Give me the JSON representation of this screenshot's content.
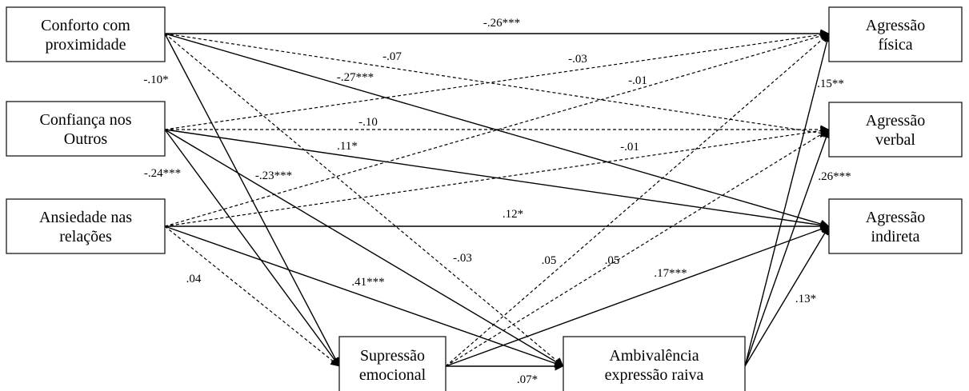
{
  "diagram": {
    "nodes": [
      {
        "id": "conforto",
        "lines": [
          "Conforto com",
          "proximidade"
        ]
      },
      {
        "id": "confianca",
        "lines": [
          "Confiança nos",
          "Outros"
        ]
      },
      {
        "id": "ansiedade",
        "lines": [
          "Ansiedade nas",
          "relações"
        ]
      },
      {
        "id": "supressao",
        "lines": [
          "Supressão",
          "emocional"
        ]
      },
      {
        "id": "ambivalencia",
        "lines": [
          "Ambivalência",
          "expressão raiva"
        ]
      },
      {
        "id": "fisica",
        "lines": [
          "Agressão",
          "física"
        ]
      },
      {
        "id": "verbal",
        "lines": [
          "Agressão",
          "verbal"
        ]
      },
      {
        "id": "indireta",
        "lines": [
          "Agressão",
          "indireta"
        ]
      }
    ],
    "edges": [
      {
        "from": "conforto",
        "to": "fisica",
        "label": "-.26***",
        "style": "solid"
      },
      {
        "from": "conforto",
        "to": "verbal",
        "label": "-.07",
        "style": "dashed"
      },
      {
        "from": "conforto",
        "to": "indireta",
        "label": "-.27***",
        "style": "solid"
      },
      {
        "from": "conforto",
        "to": "supressao",
        "label": "-.10*",
        "style": "solid"
      },
      {
        "from": "conforto",
        "to": "ambivalencia",
        "label": "-.03",
        "style": "dashed"
      },
      {
        "from": "confianca",
        "to": "fisica",
        "label": "-.03",
        "style": "dashed"
      },
      {
        "from": "confianca",
        "to": "verbal",
        "label": "-.10",
        "style": "dashed"
      },
      {
        "from": "confianca",
        "to": "indireta",
        "label": ".11*",
        "style": "solid"
      },
      {
        "from": "confianca",
        "to": "supressao",
        "label": "-.24***",
        "style": "solid"
      },
      {
        "from": "confianca",
        "to": "ambivalencia",
        "label": "-.23***",
        "style": "solid"
      },
      {
        "from": "ansiedade",
        "to": "fisica",
        "label": "-.01",
        "style": "dashed"
      },
      {
        "from": "ansiedade",
        "to": "verbal",
        "label": "-.01",
        "style": "dashed"
      },
      {
        "from": "ansiedade",
        "to": "indireta",
        "label": ".12*",
        "style": "solid"
      },
      {
        "from": "ansiedade",
        "to": "supressao",
        "label": ".04",
        "style": "dashed"
      },
      {
        "from": "ansiedade",
        "to": "ambivalencia",
        "label": ".41***",
        "style": "solid"
      },
      {
        "from": "supressao",
        "to": "fisica",
        "label": ".05",
        "style": "dashed"
      },
      {
        "from": "supressao",
        "to": "verbal",
        "label": ".05",
        "style": "dashed"
      },
      {
        "from": "supressao",
        "to": "indireta",
        "label": ".17***",
        "style": "solid"
      },
      {
        "from": "supressao",
        "to": "ambivalencia",
        "label": ".07*",
        "style": "solid"
      },
      {
        "from": "ambivalencia",
        "to": "fisica",
        "label": ".15**",
        "style": "solid"
      },
      {
        "from": "ambivalencia",
        "to": "verbal",
        "label": ".26***",
        "style": "solid"
      },
      {
        "from": "ambivalencia",
        "to": "indireta",
        "label": ".13*",
        "style": "solid"
      }
    ]
  }
}
